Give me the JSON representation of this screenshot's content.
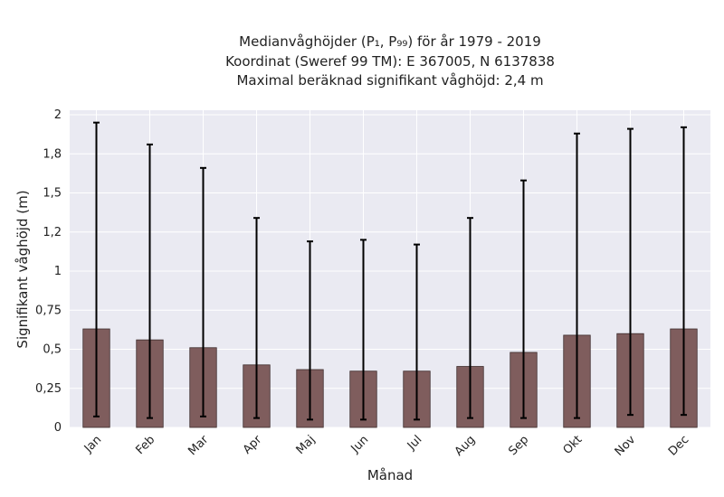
{
  "chart_data": {
    "type": "bar",
    "title": [
      "Medianvåghöjder (P₁, P₉₉) för år 1979 - 2019",
      "Koordinat (Sweref 99 TM): E 367005, N 6137838",
      "Maximal beräknad signifikant våghöjd: 2,4 m"
    ],
    "xlabel": "Månad",
    "ylabel": "Signifikant våghöjd (m)",
    "categories": [
      "Jan",
      "Feb",
      "Mar",
      "Apr",
      "Maj",
      "Jun",
      "Jul",
      "Aug",
      "Sep",
      "Okt",
      "Nov",
      "Dec"
    ],
    "values": [
      0.63,
      0.56,
      0.51,
      0.4,
      0.37,
      0.36,
      0.36,
      0.39,
      0.48,
      0.59,
      0.6,
      0.63
    ],
    "p1": [
      0.07,
      0.06,
      0.07,
      0.06,
      0.05,
      0.05,
      0.05,
      0.06,
      0.06,
      0.06,
      0.08,
      0.08
    ],
    "p99": [
      1.95,
      1.81,
      1.66,
      1.34,
      1.19,
      1.2,
      1.17,
      1.34,
      1.58,
      1.88,
      1.91,
      1.92
    ],
    "ylim": [
      0,
      2
    ],
    "yticks": [
      0,
      0.25,
      0.5,
      0.75,
      1,
      1.25,
      1.5,
      1.75,
      2
    ],
    "ytick_labels": [
      "0",
      "0,25",
      "0,5",
      "0,75",
      "1",
      "1,2",
      "1,5",
      "1,8",
      "2"
    ],
    "grid": true,
    "colors": {
      "bar": "#7f5d5d",
      "bar_edge": "#3d2c2c",
      "plot_bg": "#eaeaf2",
      "grid": "#ffffff",
      "error": "#000000"
    }
  }
}
